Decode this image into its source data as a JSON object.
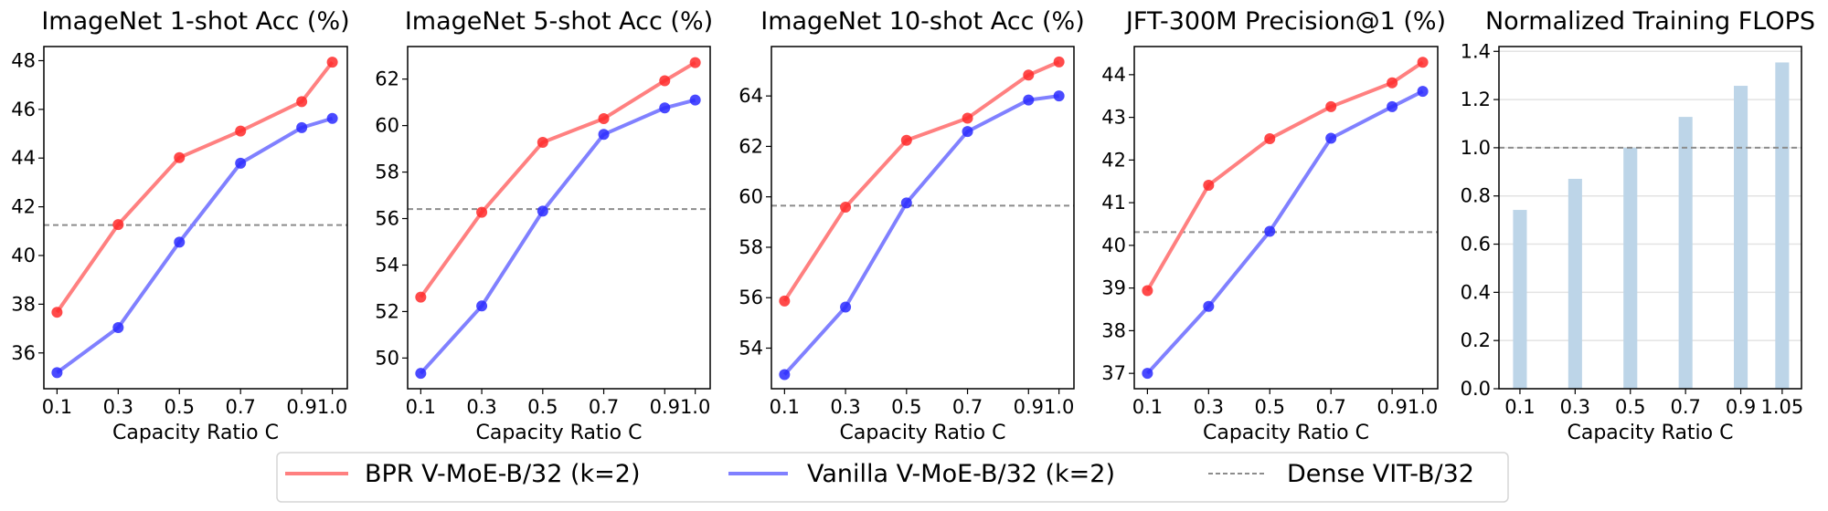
{
  "legend": {
    "entries": [
      {
        "label": "BPR V-MoE-B/32 (k=2)",
        "color": "#ff8080",
        "style": "solid"
      },
      {
        "label": "Vanilla V-MoE-B/32 (k=2)",
        "color": "#8080ff",
        "style": "solid"
      },
      {
        "label": "Dense VIT-B/32",
        "color": "#8c8c8c",
        "style": "dashed"
      }
    ],
    "placement": "bottom-center"
  },
  "colors": {
    "bpr_line": "#ff8080",
    "bpr_marker": "#ff2a2a",
    "vanilla_line": "#8080ff",
    "vanilla_marker": "#2a2aff",
    "dense": "#8c8c8c",
    "bar": "#bdd5e8",
    "grid": "#e3e3e3"
  },
  "chart_data": [
    {
      "type": "line",
      "title": "ImageNet 1-shot Acc (%)",
      "xlabel": "Capacity Ratio C",
      "x": [
        0.1,
        0.3,
        0.5,
        0.7,
        0.9,
        1.0
      ],
      "xticks": [
        "0.1",
        "0.3",
        "0.5",
        "0.7",
        "0.9",
        "1.0"
      ],
      "yticks": [
        36,
        38,
        40,
        42,
        44,
        46,
        48
      ],
      "ylim": [
        34.53,
        48.58
      ],
      "xlim": [
        0.057,
        1.049
      ],
      "grid": false,
      "series": [
        {
          "name": "BPR V-MoE-B/32 (k=2)",
          "values": [
            37.67,
            41.27,
            44.02,
            45.11,
            46.32,
            47.94
          ]
        },
        {
          "name": "Vanilla V-MoE-B/32 (k=2)",
          "values": [
            35.19,
            37.04,
            40.55,
            43.79,
            45.25,
            45.63
          ]
        }
      ],
      "reference": {
        "name": "Dense VIT-B/32",
        "value": 41.25
      }
    },
    {
      "type": "line",
      "title": "ImageNet 5-shot Acc (%)",
      "xlabel": "Capacity Ratio C",
      "x": [
        0.1,
        0.3,
        0.5,
        0.7,
        0.9,
        1.0
      ],
      "xticks": [
        "0.1",
        "0.3",
        "0.5",
        "0.7",
        "0.9",
        "1.0"
      ],
      "yticks": [
        50,
        52,
        54,
        56,
        58,
        60,
        62
      ],
      "ylim": [
        48.68,
        63.4
      ],
      "xlim": [
        0.057,
        1.049
      ],
      "grid": false,
      "series": [
        {
          "name": "BPR V-MoE-B/32 (k=2)",
          "values": [
            52.62,
            56.27,
            59.28,
            60.3,
            61.93,
            62.71
          ]
        },
        {
          "name": "Vanilla V-MoE-B/32 (k=2)",
          "values": [
            49.34,
            52.24,
            56.32,
            59.62,
            60.76,
            61.1
          ]
        }
      ],
      "reference": {
        "name": "Dense VIT-B/32",
        "value": 56.41
      }
    },
    {
      "type": "line",
      "title": "ImageNet 10-shot Acc (%)",
      "xlabel": "Capacity Ratio C",
      "x": [
        0.1,
        0.3,
        0.5,
        0.7,
        0.9,
        1.0
      ],
      "xticks": [
        "0.1",
        "0.3",
        "0.5",
        "0.7",
        "0.9",
        "1.0"
      ],
      "yticks": [
        54,
        56,
        58,
        60,
        62,
        64
      ],
      "ylim": [
        52.39,
        65.96
      ],
      "xlim": [
        0.057,
        1.049
      ],
      "grid": false,
      "series": [
        {
          "name": "BPR V-MoE-B/32 (k=2)",
          "values": [
            55.87,
            59.59,
            62.24,
            63.12,
            64.83,
            65.35
          ]
        },
        {
          "name": "Vanilla V-MoE-B/32 (k=2)",
          "values": [
            52.95,
            55.63,
            59.76,
            62.59,
            63.84,
            64.0
          ]
        }
      ],
      "reference": {
        "name": "Dense VIT-B/32",
        "value": 59.65
      }
    },
    {
      "type": "line",
      "title": "JFT-300M Precision@1 (%)",
      "xlabel": "Capacity Ratio C",
      "x": [
        0.1,
        0.3,
        0.5,
        0.7,
        0.9,
        1.0
      ],
      "xticks": [
        "0.1",
        "0.3",
        "0.5",
        "0.7",
        "0.9",
        "1.0"
      ],
      "yticks": [
        37,
        38,
        39,
        40,
        41,
        42,
        43,
        44
      ],
      "ylim": [
        36.64,
        44.66
      ],
      "xlim": [
        0.057,
        1.049
      ],
      "grid": false,
      "series": [
        {
          "name": "BPR V-MoE-B/32 (k=2)",
          "values": [
            38.94,
            41.41,
            42.5,
            43.25,
            43.81,
            44.29
          ]
        },
        {
          "name": "Vanilla V-MoE-B/32 (k=2)",
          "values": [
            37.0,
            38.57,
            40.33,
            42.51,
            43.25,
            43.61
          ]
        }
      ],
      "reference": {
        "name": "Dense VIT-B/32",
        "value": 40.31
      }
    },
    {
      "type": "bar",
      "title": "Normalized Training FLOPS",
      "xlabel": "Capacity Ratio C",
      "x": [
        0.1,
        0.3,
        0.5,
        0.7,
        0.9,
        1.05
      ],
      "xticks": [
        "0.1",
        "0.3",
        "0.5",
        "0.7",
        "0.9",
        "1.05"
      ],
      "yticks": [
        "0.0",
        "0.2",
        "0.4",
        "0.6",
        "0.8",
        "1.0",
        "1.2",
        "1.4"
      ],
      "ylim": [
        0,
        1.42
      ],
      "xlim": [
        0.024,
        1.12
      ],
      "grid": true,
      "values": [
        0.742,
        0.871,
        1.0,
        1.128,
        1.257,
        1.354
      ],
      "reference": {
        "name": "Dense VIT-B/32",
        "value": 1.0
      }
    }
  ]
}
